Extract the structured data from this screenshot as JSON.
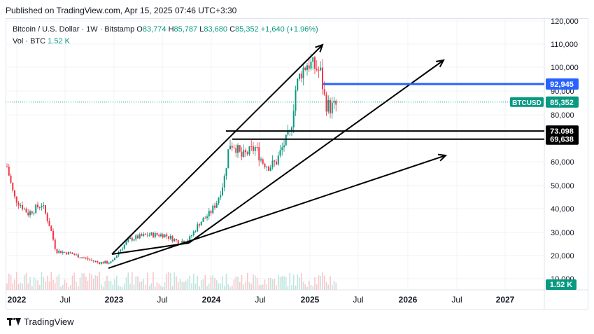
{
  "published": "Published on TradingView.com, Apr 15, 2025 07:46 UTC+3:30",
  "legend": {
    "title": "Bitcoin / U.S. Dollar · 1W · Bitstamp",
    "o_label": "O",
    "o": "83,774",
    "h_label": "H",
    "h": "85,787",
    "l_label": "L",
    "l": "83,680",
    "c_label": "C",
    "c": "85,352",
    "change": "+1,640 (+1.96%)",
    "vol_label": "Vol · BTC",
    "vol": "1.52 K"
  },
  "price_axis": {
    "ticks": [
      "120,000",
      "110,000",
      "100,000",
      "90,000",
      "80,000",
      "60,000",
      "50,000",
      "40,000",
      "30,000",
      "20,000",
      "10,000"
    ],
    "labels": [
      {
        "text": "92,945",
        "price": 92945,
        "color": "#2962ff"
      },
      {
        "text": "85,352",
        "price": 85352,
        "color": "#089981",
        "tag": "BTCUSD"
      },
      {
        "text": "73,098",
        "price": 73098,
        "color": "#000000"
      },
      {
        "text": "69,638",
        "price": 69638,
        "color": "#000000"
      }
    ],
    "volume_label": "1.52 K"
  },
  "time_axis": {
    "ticks": [
      "2022",
      "Jul",
      "2023",
      "Jul",
      "2024",
      "Jul",
      "2025",
      "Jul",
      "2026",
      "Jul",
      "2027"
    ],
    "bold": [
      "2022",
      "2023",
      "2024",
      "2025",
      "2026",
      "2027"
    ]
  },
  "colors": {
    "up": "#089981",
    "down": "#f23645",
    "blue_line": "#2962ff",
    "lines": "#000000"
  },
  "footer": {
    "brand": "TradingView",
    "icon": "tradingview-logo-icon"
  }
}
